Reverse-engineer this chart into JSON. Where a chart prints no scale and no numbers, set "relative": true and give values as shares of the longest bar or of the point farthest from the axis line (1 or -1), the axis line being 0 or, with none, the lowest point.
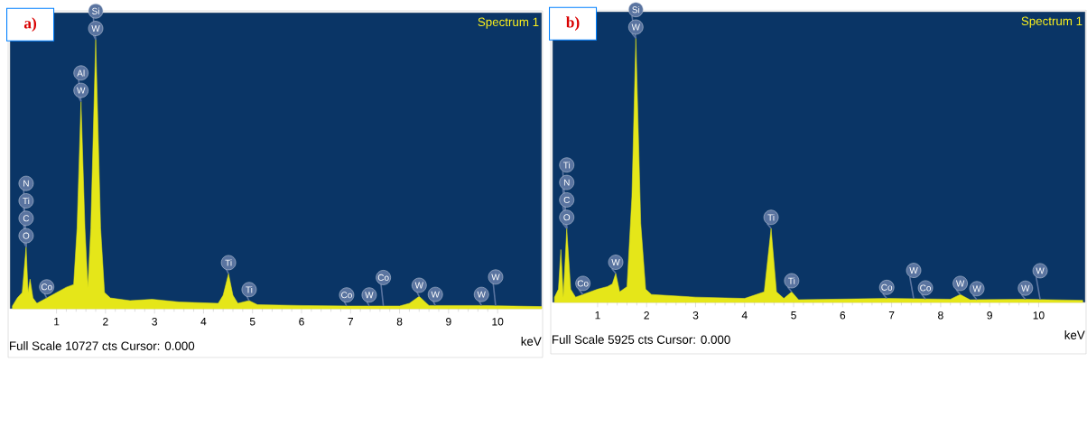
{
  "chart_data": [
    {
      "type": "area",
      "title": "a)",
      "subtitle": "Spectrum 1",
      "xlabel": "keV",
      "relative": true,
      "tick_labels": "x",
      "xlim": [
        0.05,
        10.9
      ],
      "xticks": [
        1,
        2,
        3,
        4,
        5,
        6,
        7,
        8,
        9,
        10
      ],
      "x": [
        0.1,
        0.2,
        0.3,
        0.38,
        0.42,
        0.46,
        0.52,
        0.6,
        0.8,
        1.0,
        1.2,
        1.35,
        1.42,
        1.5,
        1.58,
        1.64,
        1.7,
        1.8,
        1.9,
        1.98,
        2.1,
        2.5,
        2.95,
        3.5,
        4.3,
        4.4,
        4.51,
        4.6,
        4.7,
        4.93,
        5.1,
        6.0,
        7.0,
        8.0,
        8.2,
        8.4,
        8.6,
        9.7,
        10.9
      ],
      "series": [
        {
          "color": "#e5e619",
          "values": [
            0.01,
            0.04,
            0.06,
            0.23,
            0.06,
            0.11,
            0.04,
            0.02,
            0.04,
            0.06,
            0.08,
            0.09,
            0.3,
            0.77,
            0.3,
            0.08,
            0.3,
            1.0,
            0.3,
            0.06,
            0.04,
            0.03,
            0.035,
            0.025,
            0.02,
            0.05,
            0.13,
            0.05,
            0.02,
            0.03,
            0.015,
            0.012,
            0.01,
            0.01,
            0.02,
            0.046,
            0.012,
            0.012,
            0.008
          ]
        }
      ],
      "annotations": [
        {
          "text": "W",
          "x": 1.8,
          "y": 1.0
        },
        {
          "text": "Si",
          "x": 1.8,
          "y": 1.0
        },
        {
          "text": "W",
          "x": 1.5,
          "y": 0.77
        },
        {
          "text": "Al",
          "x": 1.5,
          "y": 0.77
        },
        {
          "text": "O",
          "x": 0.38,
          "y": 0.23
        },
        {
          "text": "C",
          "x": 0.38,
          "y": 0.23
        },
        {
          "text": "Ti",
          "x": 0.38,
          "y": 0.23
        },
        {
          "text": "N",
          "x": 0.38,
          "y": 0.23
        },
        {
          "text": "Co",
          "x": 0.8,
          "y": 0.04
        },
        {
          "text": "Ti",
          "x": 4.51,
          "y": 0.13
        },
        {
          "text": "Ti",
          "x": 4.93,
          "y": 0.03
        },
        {
          "text": "Co",
          "x": 6.92,
          "y": 0.01
        },
        {
          "text": "W",
          "x": 7.38,
          "y": 0.01
        },
        {
          "text": "Co",
          "x": 7.67,
          "y": 0.01
        },
        {
          "text": "W",
          "x": 8.4,
          "y": 0.046
        },
        {
          "text": "W",
          "x": 8.73,
          "y": 0.012
        },
        {
          "text": "W",
          "x": 9.67,
          "y": 0.012
        },
        {
          "text": "W",
          "x": 9.96,
          "y": 0.011
        },
        "Full Scale 10727 cts Cursor: 0.000"
      ]
    },
    {
      "type": "area",
      "title": "b)",
      "subtitle": "Spectrum 1",
      "xlabel": "keV",
      "relative": true,
      "tick_labels": "x",
      "xlim": [
        0.08,
        10.95
      ],
      "xticks": [
        1,
        2,
        3,
        4,
        5,
        6,
        7,
        8,
        9,
        10
      ],
      "x": [
        0.12,
        0.2,
        0.25,
        0.3,
        0.37,
        0.45,
        0.55,
        0.7,
        1.0,
        1.2,
        1.3,
        1.37,
        1.45,
        1.6,
        1.7,
        1.78,
        1.88,
        1.98,
        2.1,
        3.0,
        4.0,
        4.4,
        4.54,
        4.65,
        4.8,
        4.96,
        5.1,
        6.9,
        8.2,
        8.4,
        8.6,
        9.7,
        10.9
      ],
      "series": [
        {
          "color": "#e5e619",
          "values": [
            0.02,
            0.05,
            0.2,
            0.02,
            0.28,
            0.05,
            0.02,
            0.03,
            0.05,
            0.06,
            0.07,
            0.11,
            0.04,
            0.06,
            0.4,
            1.0,
            0.3,
            0.05,
            0.03,
            0.02,
            0.015,
            0.04,
            0.28,
            0.04,
            0.015,
            0.04,
            0.01,
            0.015,
            0.012,
            0.03,
            0.01,
            0.012,
            0.008
          ]
        }
      ],
      "annotations": [
        {
          "text": "W",
          "x": 1.78,
          "y": 1.0
        },
        {
          "text": "Si",
          "x": 1.78,
          "y": 1.0
        },
        {
          "text": "O",
          "x": 0.37,
          "y": 0.28
        },
        {
          "text": "C",
          "x": 0.37,
          "y": 0.28
        },
        {
          "text": "N",
          "x": 0.37,
          "y": 0.28
        },
        {
          "text": "Ti",
          "x": 0.37,
          "y": 0.28
        },
        {
          "text": "Co",
          "x": 0.7,
          "y": 0.03
        },
        {
          "text": "W",
          "x": 1.37,
          "y": 0.11
        },
        {
          "text": "Ti",
          "x": 4.54,
          "y": 0.28
        },
        {
          "text": "Ti",
          "x": 4.96,
          "y": 0.04
        },
        {
          "text": "Co",
          "x": 6.9,
          "y": 0.015
        },
        {
          "text": "Co",
          "x": 7.69,
          "y": 0.013
        },
        {
          "text": "W",
          "x": 7.45,
          "y": 0.014
        },
        {
          "text": "W",
          "x": 8.4,
          "y": 0.03
        },
        {
          "text": "W",
          "x": 8.74,
          "y": 0.01
        },
        {
          "text": "W",
          "x": 9.73,
          "y": 0.012
        },
        {
          "text": "W",
          "x": 10.03,
          "y": 0.011
        },
        "Full Scale 5925 cts Cursor: 0.000"
      ]
    }
  ]
}
